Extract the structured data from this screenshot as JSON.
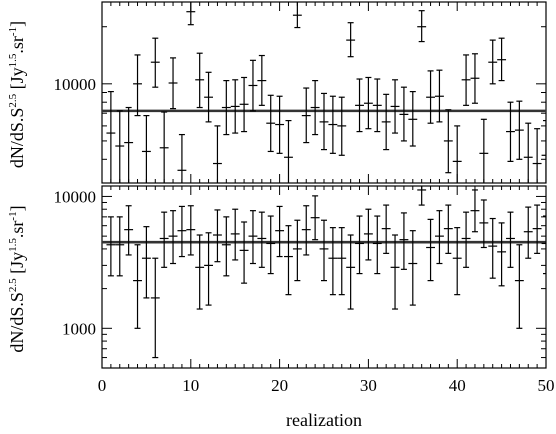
{
  "chart_data": [
    {
      "type": "scatter",
      "panel": "top",
      "ylabel": "dN/dS.S^2.5 [Jy^1.5.sr^-1]",
      "ylabel_parts": {
        "main": "dN/dS.S",
        "exp": "2.5",
        "open": "[Jy",
        "jy_exp": "1.5",
        "sr": ".sr",
        "sr_exp": "-1",
        "close": "]"
      },
      "yscale": "log",
      "ylim": [
        3000,
        27000
      ],
      "y_ticks": [
        10000
      ],
      "y_tick_labels": [
        "10000"
      ],
      "xlim": [
        0,
        50
      ],
      "reference_line": 7200,
      "series": [
        {
          "x": [
            1,
            2,
            3,
            4,
            5,
            6,
            7,
            8,
            9,
            10,
            11,
            12,
            13,
            14,
            15,
            16,
            17,
            18,
            19,
            20,
            21,
            22,
            23,
            24,
            25,
            26,
            27,
            28,
            29,
            30,
            31,
            32,
            33,
            34,
            35,
            36,
            37,
            38,
            39,
            40,
            41,
            42,
            43,
            44,
            45,
            46,
            47,
            48,
            49,
            50
          ],
          "y": [
            5500,
            4700,
            4900,
            10000,
            4400,
            13000,
            4600,
            10100,
            3500,
            24000,
            10500,
            8500,
            3800,
            7500,
            7600,
            7800,
            9800,
            10400,
            6200,
            6100,
            4100,
            23000,
            6800,
            7500,
            6300,
            6100,
            6000,
            17000,
            7700,
            7900,
            7700,
            6300,
            7600,
            6900,
            6500,
            20000,
            8500,
            8600,
            5000,
            3900,
            10500,
            10700,
            4300,
            13000,
            13400,
            5600,
            5700,
            4100,
            3800,
            4200
          ],
          "yerr_low": [
            2600,
            1800,
            1900,
            3200,
            1700,
            3400,
            1700,
            2700,
            1300,
            3500,
            3000,
            2200,
            1500,
            2100,
            2100,
            2200,
            2600,
            2700,
            1800,
            1800,
            1600,
            3200,
            1900,
            2100,
            1800,
            1800,
            1800,
            3100,
            2100,
            2100,
            2100,
            1800,
            2100,
            1900,
            1800,
            3300,
            2300,
            2300,
            1600,
            1500,
            2800,
            2800,
            1600,
            3000,
            3000,
            1700,
            1700,
            1500,
            1400,
            1500
          ],
          "yerr_high": [
            3600,
            2500,
            2600,
            4200,
            2400,
            4400,
            2500,
            3600,
            1900,
            4300,
            4000,
            3000,
            2200,
            2900,
            2900,
            3000,
            3500,
            3700,
            2500,
            2500,
            2300,
            4200,
            2700,
            2900,
            2600,
            2500,
            2500,
            4000,
            2900,
            2900,
            2900,
            2500,
            2900,
            2700,
            2600,
            4300,
            3200,
            3200,
            2300,
            2100,
            3700,
            3700,
            2200,
            4000,
            4000,
            2400,
            2400,
            2100,
            2000,
            2200
          ]
        }
      ]
    },
    {
      "type": "scatter",
      "panel": "bottom",
      "xlabel": "realization",
      "ylabel": "dN/dS.S^2.5 [Jy^1.5.sr^-1]",
      "ylabel_parts": {
        "main": "dN/dS.S",
        "exp": "2.5",
        "open": "[Jy",
        "jy_exp": "1.5",
        "sr": ".sr",
        "sr_exp": "-1",
        "close": "]"
      },
      "yscale": "log",
      "ylim": [
        500,
        12000
      ],
      "y_ticks": [
        1000,
        10000
      ],
      "y_tick_labels": [
        "1000",
        "10000"
      ],
      "xlim": [
        0,
        50
      ],
      "x_ticks": [
        0,
        10,
        20,
        30,
        40,
        50
      ],
      "x_tick_labels": [
        "0",
        "10",
        "20",
        "30",
        "40",
        "50"
      ],
      "reference_line": 4500,
      "series": [
        {
          "x": [
            1,
            2,
            3,
            4,
            5,
            6,
            7,
            8,
            9,
            10,
            11,
            12,
            13,
            14,
            15,
            16,
            17,
            18,
            19,
            20,
            21,
            22,
            23,
            24,
            25,
            26,
            27,
            28,
            29,
            30,
            31,
            32,
            33,
            34,
            35,
            36,
            37,
            38,
            39,
            40,
            41,
            42,
            43,
            44,
            45,
            46,
            47,
            48,
            49,
            50
          ],
          "y": [
            4300,
            4300,
            5600,
            2300,
            3400,
            1700,
            4800,
            5000,
            5500,
            5600,
            2900,
            3000,
            5100,
            4300,
            5200,
            3900,
            5000,
            4800,
            4400,
            5500,
            3500,
            4000,
            5600,
            6900,
            4000,
            3400,
            3400,
            2900,
            4400,
            5200,
            4400,
            5700,
            2900,
            4700,
            3100,
            11200,
            4100,
            5000,
            5700,
            3400,
            4800,
            7800,
            6300,
            4200,
            3800,
            4800,
            2300,
            5400,
            5700,
            4400
          ],
          "yerr_low": [
            1800,
            1800,
            2000,
            1300,
            1700,
            1100,
            1900,
            1900,
            2000,
            2000,
            1500,
            1500,
            1900,
            1800,
            1900,
            1700,
            1900,
            1900,
            1800,
            2000,
            1700,
            1700,
            2000,
            2200,
            1700,
            1600,
            1600,
            1500,
            1800,
            1900,
            1800,
            2000,
            1500,
            1900,
            1600,
            2600,
            1800,
            1900,
            2000,
            1600,
            1900,
            2400,
            2200,
            1800,
            1700,
            1900,
            1300,
            2000,
            2000,
            1800
          ],
          "yerr_high": [
            2700,
            2700,
            2900,
            2000,
            2500,
            1700,
            2800,
            2800,
            2900,
            2900,
            2200,
            2300,
            2800,
            2700,
            2800,
            2500,
            2800,
            2800,
            2700,
            2900,
            2500,
            2600,
            2900,
            3200,
            2600,
            2400,
            2400,
            2200,
            2700,
            2800,
            2700,
            2900,
            2200,
            2800,
            2400,
            3700,
            2600,
            2800,
            2900,
            2400,
            2800,
            3400,
            3100,
            2600,
            2500,
            2800,
            2000,
            2900,
            2900,
            2700
          ]
        }
      ]
    }
  ]
}
